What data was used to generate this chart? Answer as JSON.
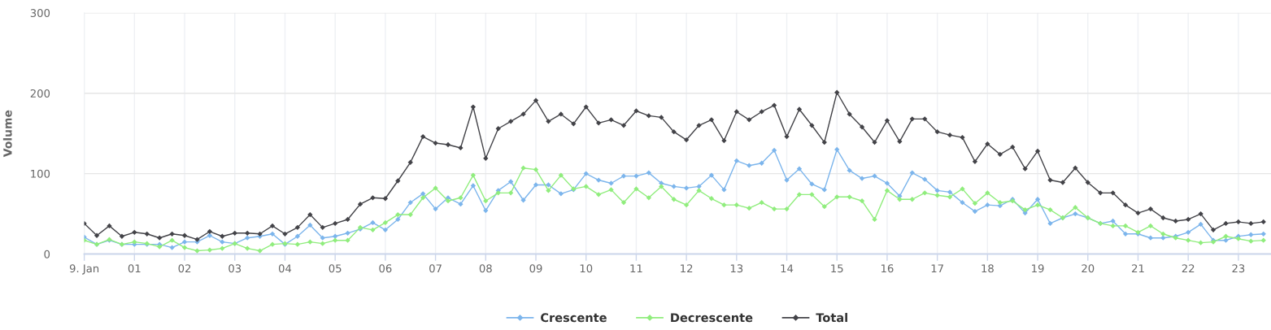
{
  "chart_data": {
    "type": "line",
    "ylabel": "Volume",
    "x": [
      0,
      0.25,
      0.5,
      0.75,
      1,
      1.25,
      1.5,
      1.75,
      2,
      2.25,
      2.5,
      2.75,
      3,
      3.25,
      3.5,
      3.75,
      4,
      4.25,
      4.5,
      4.75,
      5,
      5.25,
      5.5,
      5.75,
      6,
      6.25,
      6.5,
      6.75,
      7,
      7.25,
      7.5,
      7.75,
      8,
      8.25,
      8.5,
      8.75,
      9,
      9.25,
      9.5,
      9.75,
      10,
      10.25,
      10.5,
      10.75,
      11,
      11.25,
      11.5,
      11.75,
      12,
      12.25,
      12.5,
      12.75,
      13,
      13.25,
      13.5,
      13.75,
      14,
      14.25,
      14.5,
      14.75,
      15,
      15.25,
      15.5,
      15.75,
      16,
      16.25,
      16.5,
      16.75,
      17,
      17.25,
      17.5,
      17.75,
      18,
      18.25,
      18.5,
      18.75,
      19,
      19.25,
      19.5,
      19.75,
      20,
      20.25,
      20.5,
      20.75,
      21,
      21.25,
      21.5,
      21.75,
      22,
      22.25,
      22.5,
      22.75,
      23,
      23.25,
      23.5
    ],
    "series": [
      {
        "name": "Crescente",
        "color": "#7cb5ec",
        "values": [
          21,
          12,
          17,
          12,
          12,
          12,
          12,
          8,
          15,
          15,
          23,
          15,
          13,
          20,
          22,
          25,
          12,
          22,
          36,
          20,
          22,
          26,
          31,
          39,
          30,
          43,
          64,
          75,
          56,
          70,
          62,
          85,
          54,
          79,
          90,
          67,
          86,
          86,
          75,
          80,
          100,
          92,
          88,
          97,
          97,
          101,
          88,
          84,
          82,
          84,
          98,
          80,
          116,
          110,
          113,
          129,
          92,
          106,
          87,
          80,
          130,
          104,
          94,
          97,
          88,
          72,
          101,
          93,
          79,
          77,
          64,
          53,
          61,
          60,
          68,
          51,
          68,
          38,
          45,
          50,
          45,
          38,
          41,
          25,
          25,
          20,
          20,
          22,
          27,
          37,
          17,
          17,
          22,
          24,
          25
        ]
      },
      {
        "name": "Decrescente",
        "color": "#90ed7d",
        "values": [
          17,
          12,
          18,
          12,
          15,
          13,
          9,
          17,
          8,
          4,
          5,
          7,
          13,
          7,
          4,
          12,
          13,
          12,
          15,
          13,
          17,
          17,
          33,
          30,
          39,
          49,
          49,
          70,
          82,
          66,
          70,
          98,
          66,
          76,
          76,
          107,
          105,
          79,
          98,
          81,
          84,
          74,
          80,
          64,
          81,
          70,
          84,
          68,
          61,
          79,
          69,
          61,
          61,
          57,
          64,
          56,
          56,
          74,
          74,
          59,
          71,
          71,
          66,
          43,
          79,
          68,
          68,
          76,
          73,
          71,
          81,
          63,
          76,
          64,
          66,
          55,
          61,
          55,
          45,
          58,
          45,
          38,
          35,
          35,
          27,
          35,
          25,
          20,
          17,
          14,
          15,
          22,
          19,
          16,
          17
        ]
      },
      {
        "name": "Total",
        "color": "#434348",
        "values": [
          38,
          23,
          35,
          22,
          27,
          25,
          20,
          25,
          23,
          18,
          28,
          22,
          26,
          26,
          25,
          35,
          25,
          33,
          49,
          33,
          38,
          43,
          62,
          70,
          69,
          91,
          114,
          146,
          138,
          136,
          132,
          183,
          119,
          156,
          165,
          174,
          191,
          165,
          174,
          162,
          183,
          163,
          167,
          160,
          178,
          172,
          170,
          152,
          142,
          160,
          167,
          141,
          177,
          167,
          177,
          185,
          146,
          180,
          160,
          139,
          201,
          174,
          158,
          139,
          166,
          140,
          168,
          168,
          152,
          148,
          145,
          115,
          137,
          124,
          133,
          106,
          128,
          92,
          89,
          107,
          89,
          76,
          76,
          61,
          51,
          56,
          45,
          41,
          43,
          50,
          30,
          38,
          40,
          38,
          40
        ]
      }
    ],
    "xlim": [
      0,
      23.65
    ],
    "xticks": [
      {
        "value": 0,
        "label": "9. Jan"
      },
      {
        "value": 1,
        "label": "01"
      },
      {
        "value": 2,
        "label": "02"
      },
      {
        "value": 3,
        "label": "03"
      },
      {
        "value": 4,
        "label": "04"
      },
      {
        "value": 5,
        "label": "05"
      },
      {
        "value": 6,
        "label": "06"
      },
      {
        "value": 7,
        "label": "07"
      },
      {
        "value": 8,
        "label": "08"
      },
      {
        "value": 9,
        "label": "09"
      },
      {
        "value": 10,
        "label": "10"
      },
      {
        "value": 11,
        "label": "11"
      },
      {
        "value": 12,
        "label": "12"
      },
      {
        "value": 13,
        "label": "13"
      },
      {
        "value": 14,
        "label": "14"
      },
      {
        "value": 15,
        "label": "15"
      },
      {
        "value": 16,
        "label": "16"
      },
      {
        "value": 17,
        "label": "17"
      },
      {
        "value": 18,
        "label": "18"
      },
      {
        "value": 19,
        "label": "19"
      },
      {
        "value": 20,
        "label": "20"
      },
      {
        "value": 21,
        "label": "21"
      },
      {
        "value": 22,
        "label": "22"
      },
      {
        "value": 23,
        "label": "23"
      }
    ],
    "ylim": [
      0,
      300
    ],
    "yticks": [
      0,
      100,
      200,
      300
    ],
    "grid": true,
    "legend": "bottom",
    "marker": "diamond",
    "line_style": "solid"
  }
}
